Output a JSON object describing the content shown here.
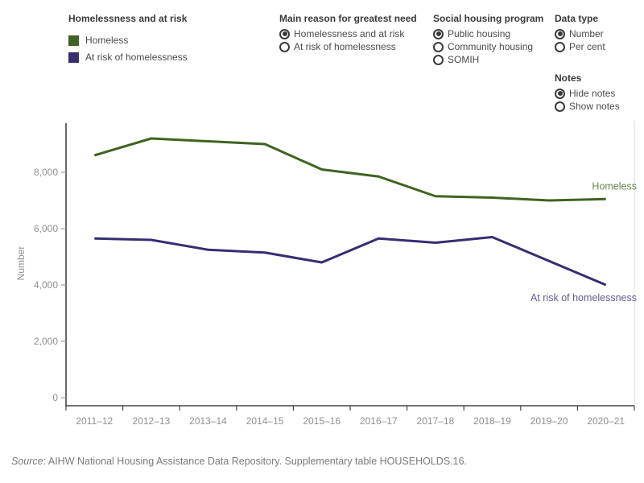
{
  "legend": {
    "title": "Homelessness and at risk",
    "items": [
      {
        "label": "Homeless",
        "color": "#3f6322"
      },
      {
        "label": "At risk of homelessness",
        "color": "#352e73"
      }
    ]
  },
  "controls": [
    {
      "title": "Main reason for greatest need",
      "options": [
        {
          "label": "Homelessness and at risk",
          "selected": true
        },
        {
          "label": "At risk of homelessness",
          "selected": false
        }
      ]
    },
    {
      "title": "Social housing program",
      "options": [
        {
          "label": "Public housing",
          "selected": true
        },
        {
          "label": "Community housing",
          "selected": false
        },
        {
          "label": "SOMIH",
          "selected": false
        }
      ]
    },
    {
      "title": "Data type",
      "options": [
        {
          "label": "Number",
          "selected": true
        },
        {
          "label": "Per cent",
          "selected": false
        }
      ]
    },
    {
      "title": "Notes",
      "options": [
        {
          "label": "Hide notes",
          "selected": true
        },
        {
          "label": "Show notes",
          "selected": false
        }
      ]
    }
  ],
  "chart_data": {
    "type": "line",
    "categories": [
      "2011–12",
      "2012–13",
      "2013–14",
      "2014–15",
      "2015–16",
      "2016–17",
      "2017–18",
      "2018–19",
      "2019–20",
      "2020–21"
    ],
    "series": [
      {
        "name": "Homeless",
        "color": "#3f6322",
        "values": [
          8600,
          9200,
          9100,
          9000,
          8100,
          7850,
          7150,
          7100,
          7000,
          7050
        ]
      },
      {
        "name": "At risk of homelessness",
        "color": "#352e73",
        "values": [
          5650,
          5600,
          5250,
          5150,
          4800,
          5650,
          5500,
          5700,
          4850,
          4000
        ]
      }
    ],
    "xlabel": "",
    "ylabel": "Number",
    "ylim": [
      0,
      9500
    ],
    "yticks": [
      0,
      2000,
      4000,
      6000,
      8000
    ],
    "grid": false,
    "legend_position": "top-left",
    "end_labels": [
      "Homeless",
      "At risk of homelessness"
    ]
  },
  "source": {
    "label": "Source",
    "text": ": AIHW National Housing Assistance Data Repository. Supplementary table HOUSEHOLDS.16."
  }
}
